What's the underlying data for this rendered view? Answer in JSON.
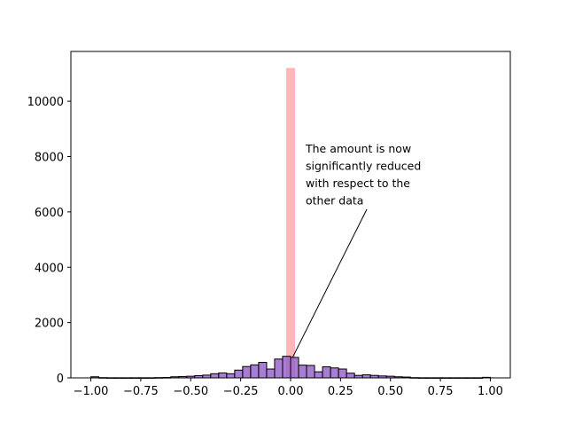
{
  "chart_data": {
    "type": "bar",
    "title": "",
    "xlabel": "",
    "ylabel": "",
    "xlim": [
      -1.1,
      1.1
    ],
    "ylim": [
      0,
      11800
    ],
    "grid": false,
    "xticks": [
      -1.0,
      -0.75,
      -0.5,
      -0.25,
      0.0,
      0.25,
      0.5,
      0.75,
      1.0
    ],
    "xtick_labels": [
      "−1.00",
      "−0.75",
      "−0.50",
      "−0.25",
      "0.00",
      "0.25",
      "0.50",
      "0.75",
      "1.00"
    ],
    "yticks": [
      0,
      2000,
      4000,
      6000,
      8000,
      10000
    ],
    "ytick_labels": [
      "0",
      "2000",
      "4000",
      "6000",
      "8000",
      "10000"
    ],
    "series": [
      {
        "type": "histogram",
        "color": "#9966cc",
        "edge_color": "#000000",
        "bin_width": 0.04,
        "bins": [
          {
            "x": -0.98,
            "y": 40
          },
          {
            "x": -0.94,
            "y": 10
          },
          {
            "x": -0.9,
            "y": 5
          },
          {
            "x": -0.86,
            "y": 5
          },
          {
            "x": -0.82,
            "y": 5
          },
          {
            "x": -0.78,
            "y": 5
          },
          {
            "x": -0.74,
            "y": 5
          },
          {
            "x": -0.7,
            "y": 5
          },
          {
            "x": -0.66,
            "y": 10
          },
          {
            "x": -0.62,
            "y": 15
          },
          {
            "x": -0.58,
            "y": 40
          },
          {
            "x": -0.54,
            "y": 50
          },
          {
            "x": -0.5,
            "y": 60
          },
          {
            "x": -0.46,
            "y": 80
          },
          {
            "x": -0.42,
            "y": 100
          },
          {
            "x": -0.38,
            "y": 150
          },
          {
            "x": -0.34,
            "y": 180
          },
          {
            "x": -0.3,
            "y": 150
          },
          {
            "x": -0.26,
            "y": 280
          },
          {
            "x": -0.22,
            "y": 410
          },
          {
            "x": -0.18,
            "y": 470
          },
          {
            "x": -0.14,
            "y": 560
          },
          {
            "x": -0.1,
            "y": 320
          },
          {
            "x": -0.06,
            "y": 680
          },
          {
            "x": -0.02,
            "y": 780
          },
          {
            "x": 0.02,
            "y": 740
          },
          {
            "x": 0.06,
            "y": 460
          },
          {
            "x": 0.1,
            "y": 450
          },
          {
            "x": 0.14,
            "y": 220
          },
          {
            "x": 0.18,
            "y": 400
          },
          {
            "x": 0.22,
            "y": 360
          },
          {
            "x": 0.26,
            "y": 320
          },
          {
            "x": 0.3,
            "y": 170
          },
          {
            "x": 0.34,
            "y": 90
          },
          {
            "x": 0.38,
            "y": 110
          },
          {
            "x": 0.42,
            "y": 90
          },
          {
            "x": 0.46,
            "y": 70
          },
          {
            "x": 0.5,
            "y": 60
          },
          {
            "x": 0.54,
            "y": 40
          },
          {
            "x": 0.58,
            "y": 30
          },
          {
            "x": 0.62,
            "y": 10
          },
          {
            "x": 0.66,
            "y": 5
          },
          {
            "x": 0.7,
            "y": 5
          },
          {
            "x": 0.74,
            "y": 5
          },
          {
            "x": 0.78,
            "y": 5
          },
          {
            "x": 0.82,
            "y": 5
          },
          {
            "x": 0.86,
            "y": 5
          },
          {
            "x": 0.9,
            "y": 5
          },
          {
            "x": 0.94,
            "y": 5
          },
          {
            "x": 0.98,
            "y": 20
          }
        ]
      },
      {
        "type": "bar",
        "color": "#ffb6b9",
        "bins": [
          {
            "x": 0.0,
            "width": 0.045,
            "y": 11200
          }
        ]
      }
    ],
    "annotation": {
      "text_lines": [
        "The amount is now",
        "significantly reduced",
        "with respect to the",
        "other data"
      ],
      "point": {
        "x": 0.01,
        "y": 740
      }
    }
  }
}
